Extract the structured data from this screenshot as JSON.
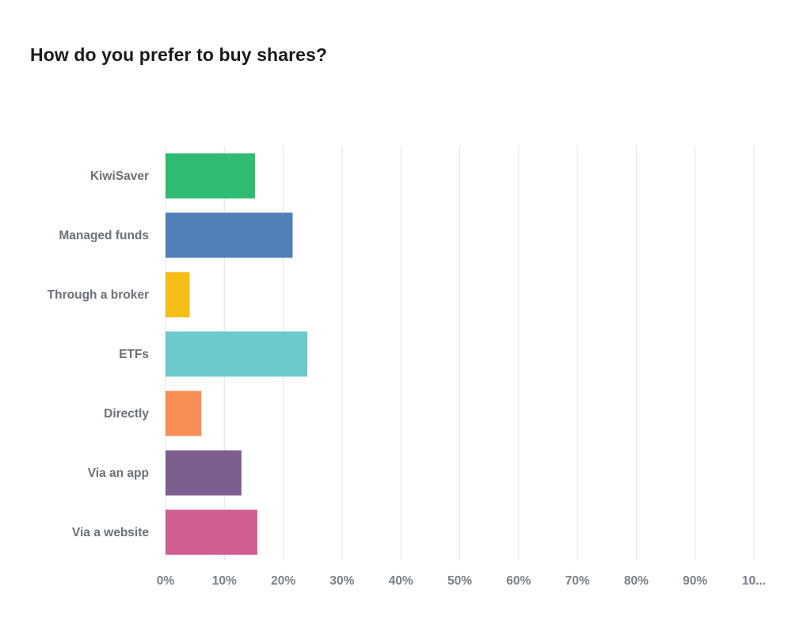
{
  "chart_data": {
    "type": "bar",
    "orientation": "horizontal",
    "title": "How do you prefer to buy shares?",
    "categories": [
      "KiwiSaver",
      "Managed funds",
      "Through a broker",
      "ETFs",
      "Directly",
      "Via an app",
      "Via a website"
    ],
    "values": [
      15.2,
      21.6,
      4.1,
      24.1,
      6.1,
      12.9,
      15.6
    ],
    "unit": "%",
    "xlim": [
      0,
      100
    ],
    "x_ticks": [
      "0%",
      "10%",
      "20%",
      "30%",
      "40%",
      "50%",
      "60%",
      "70%",
      "80%",
      "90%",
      "10..."
    ],
    "colors": [
      "#2fbc72",
      "#527fb9",
      "#f6bd17",
      "#6ccacc",
      "#f68e55",
      "#7c5e8f",
      "#d05e92"
    ],
    "grid": true,
    "legend": "none"
  }
}
